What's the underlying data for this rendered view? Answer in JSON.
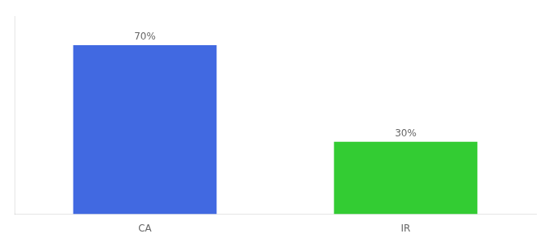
{
  "chart_data": {
    "type": "bar",
    "categories": [
      "CA",
      "IR"
    ],
    "values": [
      70,
      30
    ],
    "value_labels": [
      "70%",
      "30%"
    ],
    "colors": [
      "#4169e1",
      "#33cc33"
    ],
    "ylim": [
      0,
      82
    ],
    "grid": false,
    "data_labels": true,
    "tick_labels": "x"
  }
}
